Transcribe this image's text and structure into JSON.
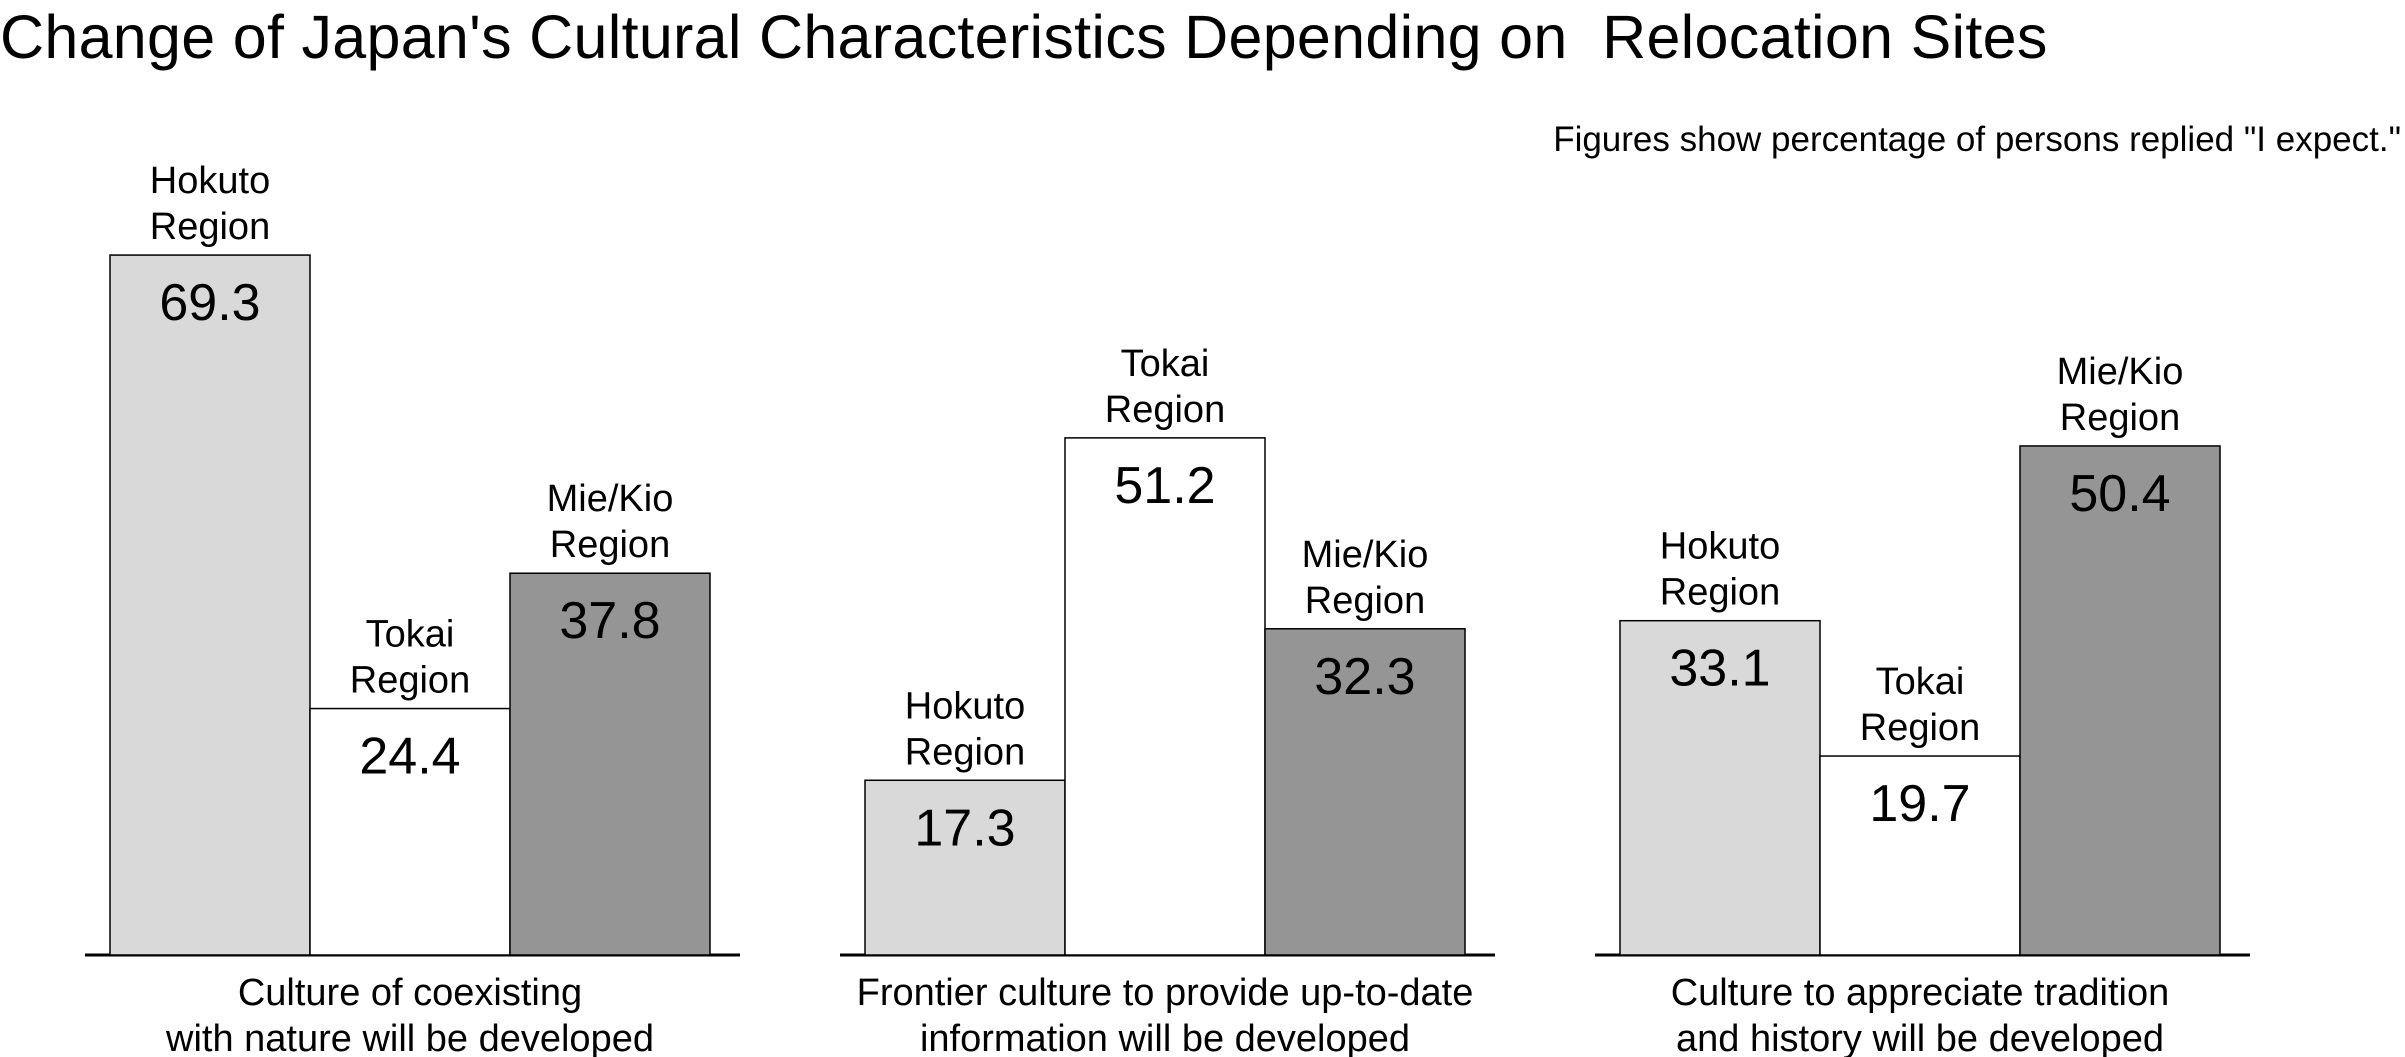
{
  "chart_data": {
    "type": "bar",
    "title": "Change of Japan's Cultural Characteristics Depending on  Relocation Sites",
    "note": "Figures show percentage of persons replied \"I expect.\"",
    "value_unit": "percent",
    "ylim": [
      0,
      72
    ],
    "grid": false,
    "legend": "none",
    "groups": [
      {
        "label_lines": [
          "Culture of coexisting",
          "with nature will be developed"
        ],
        "bars": [
          {
            "region_lines": [
              "Hokuto",
              "Region"
            ],
            "value": 69.3,
            "value_label": "69.3",
            "color": "#d9d9d9"
          },
          {
            "region_lines": [
              "Tokai",
              "Region"
            ],
            "value": 24.4,
            "value_label": "24.4",
            "color": "#ffffff"
          },
          {
            "region_lines": [
              "Mie/Kio",
              "Region"
            ],
            "value": 37.8,
            "value_label": "37.8",
            "color": "#959595"
          }
        ]
      },
      {
        "label_lines": [
          "Frontier culture to provide up-to-date",
          "information will be developed"
        ],
        "bars": [
          {
            "region_lines": [
              "Hokuto",
              "Region"
            ],
            "value": 17.3,
            "value_label": "17.3",
            "color": "#d9d9d9"
          },
          {
            "region_lines": [
              "Tokai",
              "Region"
            ],
            "value": 51.2,
            "value_label": "51.2",
            "color": "#ffffff"
          },
          {
            "region_lines": [
              "Mie/Kio",
              "Region"
            ],
            "value": 32.3,
            "value_label": "32.3",
            "color": "#959595"
          }
        ]
      },
      {
        "label_lines": [
          "Culture to appreciate tradition",
          "and history will be developed"
        ],
        "bars": [
          {
            "region_lines": [
              "Hokuto",
              "Region"
            ],
            "value": 33.1,
            "value_label": "33.1",
            "color": "#d9d9d9"
          },
          {
            "region_lines": [
              "Tokai",
              "Region"
            ],
            "value": 19.7,
            "value_label": "19.7",
            "color": "#ffffff"
          },
          {
            "region_lines": [
              "Mie/Kio",
              "Region"
            ],
            "value": 50.4,
            "value_label": "50.4",
            "color": "#959595"
          }
        ]
      }
    ]
  }
}
